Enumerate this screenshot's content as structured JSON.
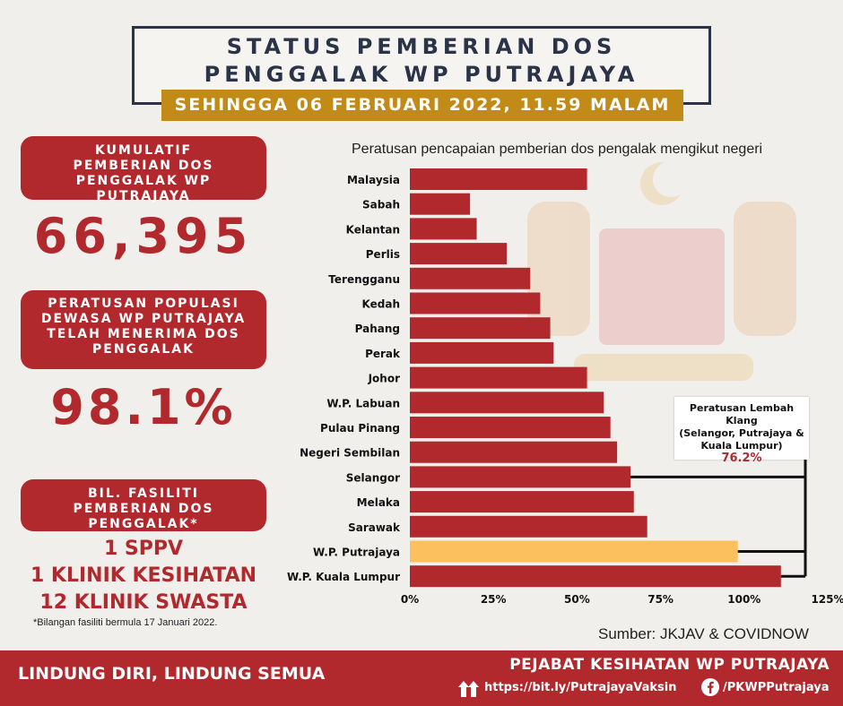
{
  "header": {
    "title_line1": "STATUS PEMBERIAN DOS",
    "title_line2": "PENGGALAK WP PUTRAJAYA",
    "date": "SEHINGGA 06 FEBRUARI 2022, 11.59 MALAM"
  },
  "left": {
    "cumulative_label": "KUMULATIF PEMBERIAN DOS PENGGALAK WP PUTRAJAYA",
    "cumulative_value": "66,395",
    "population_label": "PERATUSAN POPULASI DEWASA WP PUTRAJAYA TELAH MENERIMA DOS PENGGALAK",
    "population_value": "98.1%",
    "facility_label": "BIL. FASILITI PEMBERIAN DOS PENGGALAK*",
    "facilities": [
      "1 SPPV",
      "1 KLINIK KESIHATAN",
      "12 KLINIK SWASTA"
    ],
    "note": "*Bilangan fasiliti bermula 17 Januari 2022."
  },
  "chart_data": {
    "type": "bar",
    "orientation": "horizontal",
    "title": "Peratusan pencapaian pemberian dos pengalak mengikut negeri",
    "categories": [
      "Malaysia",
      "Sabah",
      "Kelantan",
      "Perlis",
      "Terengganu",
      "Kedah",
      "Pahang",
      "Perak",
      "Johor",
      "W.P. Labuan",
      "Pulau Pinang",
      "Negeri Sembilan",
      "Selangor",
      "Melaka",
      "Sarawak",
      "W.P. Putrajaya",
      "W.P. Kuala Lumpur"
    ],
    "values": [
      53,
      18,
      20,
      29,
      36,
      39,
      42,
      43,
      53,
      58,
      60,
      62,
      66,
      67,
      71,
      98.1,
      111
    ],
    "xlim": [
      0,
      125
    ],
    "xticks": [
      "0%",
      "25%",
      "50%",
      "75%",
      "100%",
      "125%"
    ],
    "bar_color": "#b1282d",
    "highlight_color": "#fcc15e",
    "highlight_category": "W.P. Putrajaya",
    "grid": false
  },
  "callout": {
    "text_line1": "Peratusan Lembah Klang",
    "text_line2": "(Selangor, Putrajaya &",
    "text_line3": "Kuala Lumpur)",
    "value": "76.2%"
  },
  "source": "Sumber:  JKJAV & COVIDNOW",
  "footer": {
    "slogan": "LINDUNG DIRI, LINDUNG SEMUA",
    "org": "PEJABAT KESIHATAN WP PUTRAJAYA",
    "link": "https://bit.ly/PutrajayaVaksin",
    "facebook": "/PKWPPutrajaya"
  },
  "colors": {
    "red": "#b1282d",
    "gold": "#c28a17",
    "navy": "#2a3347",
    "yellow": "#fcc15e"
  },
  "icons": [
    "up-arrows-icon",
    "facebook-icon"
  ]
}
